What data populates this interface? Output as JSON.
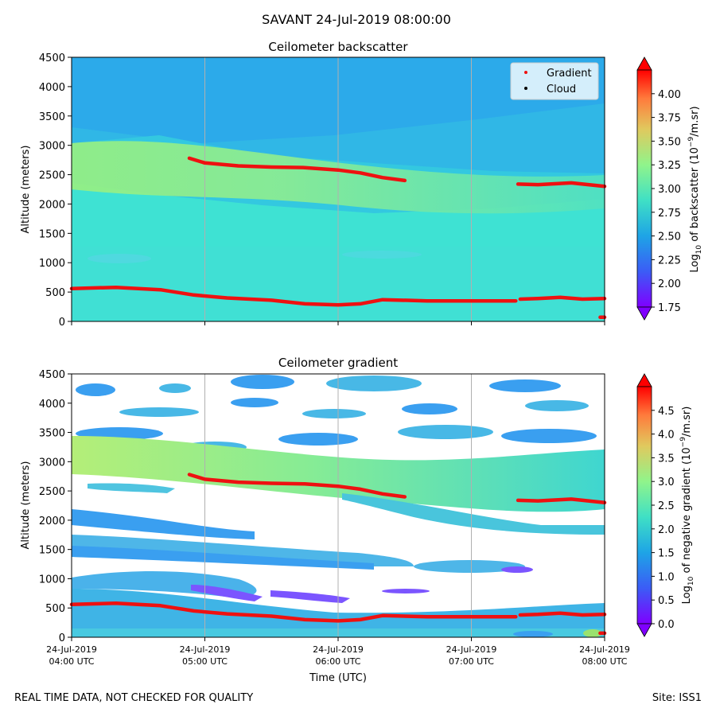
{
  "figure": {
    "title": "SAVANT 24-Jul-2019 08:00:00",
    "footer_left": "REAL TIME DATA, NOT CHECKED FOR QUALITY",
    "footer_right": "Site: ISS1"
  },
  "colors": {
    "gradient_line": "#ee1111",
    "cloud_marker": "#000000",
    "grid": "#b0b0b0"
  },
  "chart_data": [
    {
      "type": "heatmap",
      "title": "Ceilometer backscatter",
      "xlabel": "",
      "ylabel": "Altitude (meters)",
      "x_range": [
        "2019-07-24T04:00",
        "2019-07-24T08:00"
      ],
      "ylim": [
        0,
        4500
      ],
      "yticks": [
        0,
        500,
        1000,
        1500,
        2000,
        2500,
        3000,
        3500,
        4000,
        4500
      ],
      "xtick_labels": [],
      "grid": "vertical",
      "legend": {
        "placement": "top-right",
        "entries": [
          {
            "label": "Gradient",
            "marker": "red dot"
          },
          {
            "label": "Cloud",
            "marker": "black dot"
          }
        ]
      },
      "colorbar": {
        "label": "Log10 of backscatter (10−9/m.sr)",
        "label_parts": {
          "pre": "Log",
          "sub": "10",
          "mid": " of backscatter (10",
          "sup": "−9",
          "post": "/m.sr)"
        },
        "range": [
          1.75,
          4.25
        ],
        "ticks": [
          1.75,
          2.0,
          2.25,
          2.5,
          2.75,
          3.0,
          3.25,
          3.5,
          3.75,
          4.0
        ],
        "tick_labels": [
          "1.75",
          "2.00",
          "2.25",
          "2.50",
          "2.75",
          "3.00",
          "3.25",
          "3.50",
          "3.75",
          "4.00"
        ]
      },
      "series": [
        {
          "name": "Gradient",
          "segments": [
            {
              "x": [
                "04:00",
                "04:20",
                "04:40",
                "04:55",
                "05:10",
                "05:30",
                "05:45",
                "06:00",
                "06:10",
                "06:20",
                "06:40",
                "07:00",
                "07:20"
              ],
              "y": [
                560,
                580,
                540,
                450,
                400,
                360,
                300,
                280,
                300,
                370,
                350,
                350,
                350
              ]
            },
            {
              "x": [
                "07:22",
                "07:30",
                "07:40",
                "07:50",
                "08:00"
              ],
              "y": [
                380,
                390,
                410,
                380,
                390
              ]
            },
            {
              "x": [
                "04:53",
                "05:00",
                "05:15",
                "05:30",
                "05:45",
                "06:00",
                "06:10",
                "06:20",
                "06:30"
              ],
              "y": [
                2780,
                2700,
                2650,
                2630,
                2620,
                2580,
                2530,
                2450,
                2400
              ]
            },
            {
              "x": [
                "07:21",
                "07:30",
                "07:45",
                "08:00"
              ],
              "y": [
                2340,
                2330,
                2360,
                2300
              ]
            },
            {
              "x": [
                "07:58",
                "08:00"
              ],
              "y": [
                70,
                70
              ]
            }
          ]
        },
        {
          "name": "Cloud",
          "segments": []
        }
      ]
    },
    {
      "type": "heatmap",
      "title": "Ceilometer gradient",
      "xlabel": "Time (UTC)",
      "ylabel": "Altitude (meters)",
      "x_range": [
        "2019-07-24T04:00",
        "2019-07-24T08:00"
      ],
      "ylim": [
        0,
        4500
      ],
      "yticks": [
        0,
        500,
        1000,
        1500,
        2000,
        2500,
        3000,
        3500,
        4000,
        4500
      ],
      "xtick_labels": [
        {
          "line1": "24-Jul-2019",
          "line2": "04:00 UTC"
        },
        {
          "line1": "24-Jul-2019",
          "line2": "05:00 UTC"
        },
        {
          "line1": "24-Jul-2019",
          "line2": "06:00 UTC"
        },
        {
          "line1": "24-Jul-2019",
          "line2": "07:00 UTC"
        },
        {
          "line1": "24-Jul-2019",
          "line2": "08:00 UTC"
        }
      ],
      "grid": "vertical",
      "colorbar": {
        "label": "Log10 of negative gradient (10−9/m.sr)",
        "label_parts": {
          "pre": "Log",
          "sub": "10",
          "mid": " of negative gradient (10",
          "sup": "−9",
          "post": "/m.sr)"
        },
        "range": [
          0.0,
          5.0
        ],
        "ticks": [
          0.0,
          0.5,
          1.0,
          1.5,
          2.0,
          2.5,
          3.0,
          3.5,
          4.0,
          4.5
        ],
        "tick_labels": [
          "0.0",
          "0.5",
          "1.0",
          "1.5",
          "2.0",
          "2.5",
          "3.0",
          "3.5",
          "4.0",
          "4.5"
        ]
      },
      "series": [
        {
          "name": "Gradient",
          "segments": [
            {
              "x": [
                "04:00",
                "04:20",
                "04:40",
                "04:55",
                "05:10",
                "05:30",
                "05:45",
                "06:00",
                "06:10",
                "06:20",
                "06:40",
                "07:00",
                "07:20"
              ],
              "y": [
                560,
                580,
                540,
                450,
                400,
                360,
                300,
                280,
                300,
                370,
                350,
                350,
                350
              ]
            },
            {
              "x": [
                "07:22",
                "07:30",
                "07:40",
                "07:50",
                "08:00"
              ],
              "y": [
                380,
                390,
                410,
                380,
                390
              ]
            },
            {
              "x": [
                "04:53",
                "05:00",
                "05:15",
                "05:30",
                "05:45",
                "06:00",
                "06:10",
                "06:20",
                "06:30"
              ],
              "y": [
                2780,
                2700,
                2650,
                2630,
                2620,
                2580,
                2530,
                2450,
                2400
              ]
            },
            {
              "x": [
                "07:21",
                "07:30",
                "07:45",
                "08:00"
              ],
              "y": [
                2340,
                2330,
                2360,
                2300
              ]
            },
            {
              "x": [
                "07:58",
                "08:00"
              ],
              "y": [
                70,
                70
              ]
            }
          ]
        }
      ]
    }
  ]
}
